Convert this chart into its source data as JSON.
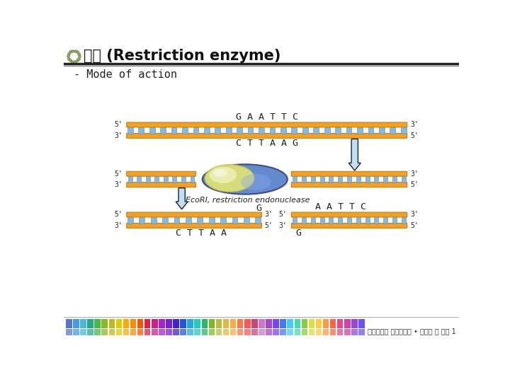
{
  "title": "서론 (Restriction enzyme)",
  "subtitle": "- Mode of action",
  "footer_text": "가천대학교 생명과학과 • 생물학 및 실험 1",
  "bg_color": "#ffffff",
  "dna_color": "#f5a020",
  "dna_border": "#c07800",
  "bp_color": "#8ab8d8",
  "bp_border": "#5588bb",
  "top_seq_upper": "G A A T T C",
  "top_seq_lower": "C T T A A G",
  "bot_left_upper": "G",
  "bot_left_lower": "C T T A A",
  "bot_right_upper": "A A T T C",
  "bot_right_lower": "G",
  "enzyme_label": "EcoRI, restriction endonuclease",
  "title_fontsize": 15,
  "subtitle_fontsize": 11,
  "seq_fontsize": 9.5,
  "strand_label_fontsize": 8,
  "footer_bar_colors": [
    "#5577cc",
    "#4499ee",
    "#44bbdd",
    "#22aa88",
    "#44bb44",
    "#88bb22",
    "#bbbb22",
    "#ddcc00",
    "#ffaa00",
    "#ff8800",
    "#ff5500",
    "#dd2244",
    "#cc2288",
    "#aa22cc",
    "#7722cc",
    "#4422cc",
    "#2255dd",
    "#22aadd",
    "#22ccbb",
    "#22bb66",
    "#77bb22",
    "#bbbb44",
    "#ddbb44",
    "#ffaa44",
    "#ff7744",
    "#ff5555",
    "#cc4477",
    "#cc77cc",
    "#aa44cc",
    "#7744ff",
    "#4477ff",
    "#44ccff",
    "#44ddaa",
    "#88cc44",
    "#dddd44",
    "#ffcc44",
    "#ff9944",
    "#ff6644",
    "#ee4488",
    "#cc44aa",
    "#9944dd",
    "#6655ff"
  ]
}
